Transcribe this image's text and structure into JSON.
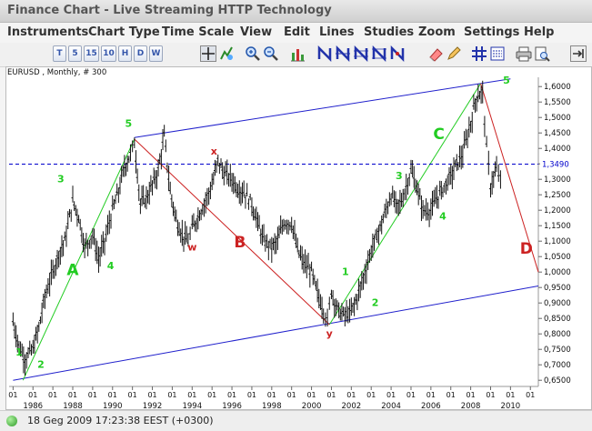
{
  "window": {
    "title": "Finance Chart - Live Streaming HTTP Technology"
  },
  "menu": [
    "Instruments",
    "Chart Type",
    "Time Scale",
    "View",
    "Edit",
    "Lines",
    "Studies",
    "Zoom",
    "Settings",
    "Help"
  ],
  "toolbar": {
    "period_buttons": [
      "T",
      "5",
      "15",
      "10",
      "H",
      "D",
      "W"
    ],
    "icons": [
      "crosshair-icon",
      "draw-icon",
      "zoom-in-icon",
      "zoom-out-icon",
      "bar-chart-icon",
      "trendline-icon",
      "channel-icon",
      "fibonacci-icon",
      "parallel-icon",
      "marker-icon",
      "eraser-icon",
      "grid-icon",
      "list-icon",
      "print-icon",
      "print-preview-icon",
      "exit-icon"
    ]
  },
  "chart": {
    "header": "EURUSD , Monthly, # 300",
    "current_price": "1,3490",
    "colors": {
      "channel": "#2020cc",
      "wave_green": "#22cc22",
      "wave_red": "#cc2222",
      "candles": "#111111",
      "price_box": "#0000cc"
    }
  },
  "status": {
    "text": "18 Geg 2009 17:23:38  EEST (+0300)"
  },
  "chart_data": {
    "type": "line",
    "symbol": "EURUSD",
    "timeframe": "Monthly",
    "y_ticks": [
      "1,6000",
      "1,5500",
      "1,5000",
      "1,4500",
      "1,4000",
      "1,3500",
      "1,3000",
      "1,2500",
      "1,2000",
      "1,1500",
      "1,1000",
      "1,0500",
      "1,0000",
      "0,9500",
      "0,9000",
      "0,8500",
      "0,8000",
      "0,7500",
      "0,7000",
      "0,6500"
    ],
    "x_ticks": [
      "1986",
      "1988",
      "1990",
      "1992",
      "1994",
      "1996",
      "1998",
      "2000",
      "2002",
      "2004",
      "2006",
      "2008",
      "2010"
    ],
    "x_minor_label": "01",
    "ylim": [
      0.63,
      1.63
    ],
    "xlim": [
      1984.8,
      2011.4
    ],
    "current_price_value": 1.349,
    "price": [
      [
        1985.0,
        0.84
      ],
      [
        1985.3,
        0.76
      ],
      [
        1985.6,
        0.72
      ],
      [
        1986.0,
        0.75
      ],
      [
        1986.3,
        0.82
      ],
      [
        1986.6,
        0.92
      ],
      [
        1987.0,
        1.0
      ],
      [
        1987.3,
        1.06
      ],
      [
        1987.6,
        1.1
      ],
      [
        1988.0,
        1.23
      ],
      [
        1988.3,
        1.18
      ],
      [
        1988.6,
        1.08
      ],
      [
        1989.0,
        1.12
      ],
      [
        1989.3,
        1.04
      ],
      [
        1989.6,
        1.1
      ],
      [
        1990.0,
        1.2
      ],
      [
        1990.3,
        1.26
      ],
      [
        1990.6,
        1.34
      ],
      [
        1990.9,
        1.38
      ],
      [
        1991.1,
        1.42
      ],
      [
        1991.4,
        1.22
      ],
      [
        1991.7,
        1.24
      ],
      [
        1992.0,
        1.28
      ],
      [
        1992.3,
        1.33
      ],
      [
        1992.6,
        1.44
      ],
      [
        1992.9,
        1.26
      ],
      [
        1993.2,
        1.17
      ],
      [
        1993.5,
        1.12
      ],
      [
        1993.8,
        1.1
      ],
      [
        1994.0,
        1.14
      ],
      [
        1994.3,
        1.18
      ],
      [
        1994.6,
        1.22
      ],
      [
        1995.0,
        1.28
      ],
      [
        1995.3,
        1.36
      ],
      [
        1995.6,
        1.32
      ],
      [
        1996.0,
        1.3
      ],
      [
        1996.3,
        1.27
      ],
      [
        1996.6,
        1.26
      ],
      [
        1997.0,
        1.22
      ],
      [
        1997.3,
        1.16
      ],
      [
        1997.6,
        1.1
      ],
      [
        1998.0,
        1.08
      ],
      [
        1998.3,
        1.1
      ],
      [
        1998.6,
        1.16
      ],
      [
        1999.0,
        1.16
      ],
      [
        1999.3,
        1.07
      ],
      [
        1999.6,
        1.03
      ],
      [
        2000.0,
        1.0
      ],
      [
        2000.3,
        0.93
      ],
      [
        2000.6,
        0.88
      ],
      [
        2000.8,
        0.84
      ],
      [
        2001.0,
        0.94
      ],
      [
        2001.3,
        0.88
      ],
      [
        2001.6,
        0.86
      ],
      [
        2002.0,
        0.87
      ],
      [
        2002.3,
        0.92
      ],
      [
        2002.6,
        0.98
      ],
      [
        2003.0,
        1.07
      ],
      [
        2003.3,
        1.12
      ],
      [
        2003.6,
        1.17
      ],
      [
        2004.0,
        1.25
      ],
      [
        2004.3,
        1.21
      ],
      [
        2004.6,
        1.24
      ],
      [
        2005.0,
        1.33
      ],
      [
        2005.3,
        1.27
      ],
      [
        2005.6,
        1.2
      ],
      [
        2006.0,
        1.2
      ],
      [
        2006.3,
        1.24
      ],
      [
        2006.6,
        1.27
      ],
      [
        2007.0,
        1.31
      ],
      [
        2007.3,
        1.35
      ],
      [
        2007.6,
        1.38
      ],
      [
        2008.0,
        1.48
      ],
      [
        2008.3,
        1.57
      ],
      [
        2008.6,
        1.58
      ],
      [
        2008.8,
        1.4
      ],
      [
        2009.0,
        1.28
      ],
      [
        2009.3,
        1.33
      ],
      [
        2009.5,
        1.3
      ],
      [
        2009.6,
        1.35
      ]
    ],
    "channel_upper": [
      [
        1991.1,
        1.435
      ],
      [
        2010.0,
        1.625
      ]
    ],
    "channel_lower": [
      [
        1985.0,
        0.65
      ],
      [
        2011.4,
        0.955
      ]
    ],
    "wave_green": [
      [
        [
          1985.5,
          0.65
        ],
        [
          1991.1,
          1.43
        ]
      ],
      [
        [
          2000.9,
          0.83
        ],
        [
          2008.5,
          1.61
        ]
      ]
    ],
    "wave_red": [
      [
        [
          1991.1,
          1.43
        ],
        [
          2000.9,
          0.83
        ]
      ],
      [
        [
          2008.5,
          1.61
        ],
        [
          2011.4,
          1.0
        ]
      ]
    ],
    "wave_labels": [
      {
        "text": "1",
        "color": "green",
        "x": 1985.3,
        "y": 0.73,
        "size": "small"
      },
      {
        "text": "2",
        "color": "green",
        "x": 1986.4,
        "y": 0.69,
        "size": "small"
      },
      {
        "text": "3",
        "color": "green",
        "x": 1987.4,
        "y": 1.29,
        "size": "small"
      },
      {
        "text": "4",
        "color": "green",
        "x": 1989.9,
        "y": 1.01,
        "size": "small"
      },
      {
        "text": "5",
        "color": "green",
        "x": 1990.8,
        "y": 1.47,
        "size": "small"
      },
      {
        "text": "A",
        "color": "green",
        "x": 1988.0,
        "y": 0.99,
        "size": "large"
      },
      {
        "text": "x",
        "color": "red",
        "x": 1995.1,
        "y": 1.38,
        "size": "small"
      },
      {
        "text": "w",
        "color": "red",
        "x": 1994.0,
        "y": 1.07,
        "size": "small"
      },
      {
        "text": "B",
        "color": "red",
        "x": 1996.4,
        "y": 1.08,
        "size": "large"
      },
      {
        "text": "y",
        "color": "red",
        "x": 2000.9,
        "y": 0.79,
        "size": "small"
      },
      {
        "text": "1",
        "color": "green",
        "x": 2001.7,
        "y": 0.99,
        "size": "small"
      },
      {
        "text": "2",
        "color": "green",
        "x": 2003.2,
        "y": 0.89,
        "size": "small"
      },
      {
        "text": "3",
        "color": "green",
        "x": 2004.4,
        "y": 1.3,
        "size": "small"
      },
      {
        "text": "4",
        "color": "green",
        "x": 2006.6,
        "y": 1.17,
        "size": "small"
      },
      {
        "text": "5",
        "color": "green",
        "x": 2009.8,
        "y": 1.61,
        "size": "small"
      },
      {
        "text": "C",
        "color": "green",
        "x": 2006.4,
        "y": 1.43,
        "size": "large"
      },
      {
        "text": "D",
        "color": "red",
        "x": 2010.8,
        "y": 1.06,
        "size": "large"
      }
    ]
  }
}
